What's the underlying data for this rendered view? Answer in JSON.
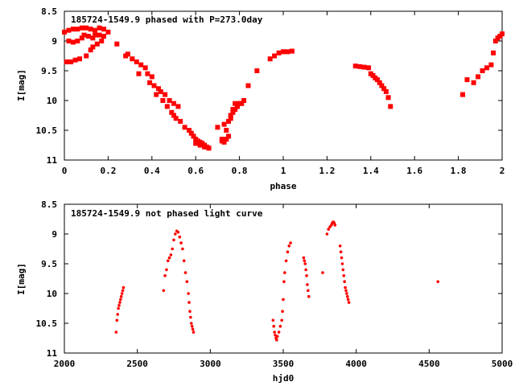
{
  "chart_data": [
    {
      "type": "scatter",
      "title": "185724-1549.9 phased with P=273.0day",
      "xlabel": "phase",
      "ylabel": "I[mag]",
      "xlim": [
        0,
        2
      ],
      "ylim": [
        11,
        8.5
      ],
      "y_inverted": true,
      "grid": false,
      "xticks": [
        "0",
        "0.2",
        "0.4",
        "0.6",
        "0.8",
        "1",
        "1.2",
        "1.4",
        "1.6",
        "1.8",
        "2"
      ],
      "yticks": [
        "8.5",
        "9",
        "9.5",
        "10",
        "10.5",
        "11"
      ],
      "marker": "plus-square",
      "color": "#ff0000",
      "series": [
        {
          "x": [
            0.0,
            0.02,
            0.04,
            0.06,
            0.08,
            0.1,
            0.12,
            0.14,
            0.16,
            0.18,
            0.2,
            0.01,
            0.03,
            0.05,
            0.07,
            0.1,
            0.12,
            0.13,
            0.15,
            0.17,
            0.02,
            0.04,
            0.06,
            0.08,
            0.09,
            0.11,
            0.13,
            0.14,
            0.16,
            0.18,
            0.24,
            0.28,
            0.29,
            0.31,
            0.33,
            0.35,
            0.37,
            0.34,
            0.38,
            0.4,
            0.39,
            0.41,
            0.43,
            0.44,
            0.46,
            0.48,
            0.5,
            0.52,
            0.42,
            0.45,
            0.47,
            0.49,
            0.5,
            0.51,
            0.53,
            0.55,
            0.57,
            0.58,
            0.59,
            0.6,
            0.61,
            0.62,
            0.63,
            0.64,
            0.65,
            0.66,
            0.6,
            0.62,
            0.64,
            0.66,
            0.7,
            0.72,
            0.73,
            0.74,
            0.75,
            0.76,
            0.77,
            0.78,
            0.79,
            0.8,
            0.81,
            0.82,
            0.72,
            0.74,
            0.75,
            0.76,
            0.77,
            0.79,
            0.73,
            0.78,
            0.8,
            0.84,
            0.88,
            0.94,
            0.96,
            0.98,
            1.0,
            1.02,
            1.04,
            1.33,
            1.35,
            1.37,
            1.39,
            1.4,
            1.41,
            1.42,
            1.43,
            1.44,
            1.45,
            1.46,
            1.47,
            1.48,
            1.49,
            1.82,
            1.84,
            1.87,
            1.89,
            1.91,
            1.93,
            1.95,
            1.96,
            1.97,
            1.98,
            1.99,
            2.0
          ],
          "y": [
            8.85,
            8.82,
            8.8,
            8.8,
            8.78,
            8.78,
            8.8,
            8.82,
            8.78,
            8.8,
            8.85,
            9.35,
            9.35,
            9.32,
            9.3,
            9.25,
            9.15,
            9.1,
            9.05,
            9.0,
            9.0,
            9.02,
            9.0,
            8.95,
            8.9,
            8.92,
            8.95,
            8.9,
            8.9,
            8.92,
            9.05,
            9.25,
            9.22,
            9.3,
            9.35,
            9.4,
            9.45,
            9.55,
            9.55,
            9.6,
            9.7,
            9.75,
            9.8,
            9.85,
            9.9,
            10.0,
            10.05,
            10.1,
            9.9,
            10.0,
            10.1,
            10.2,
            10.25,
            10.3,
            10.35,
            10.45,
            10.5,
            10.55,
            10.6,
            10.65,
            10.68,
            10.7,
            10.72,
            10.75,
            10.78,
            10.8,
            10.72,
            10.75,
            10.78,
            10.8,
            10.45,
            10.65,
            10.7,
            10.5,
            10.35,
            10.25,
            10.2,
            10.15,
            10.1,
            10.05,
            10.05,
            10.0,
            10.68,
            10.65,
            10.6,
            10.3,
            10.15,
            10.1,
            10.4,
            10.05,
            10.05,
            9.75,
            9.5,
            9.3,
            9.25,
            9.2,
            9.18,
            9.18,
            9.17,
            9.42,
            9.43,
            9.44,
            9.45,
            9.55,
            9.58,
            9.62,
            9.65,
            9.7,
            9.75,
            9.8,
            9.85,
            9.95,
            10.1,
            9.9,
            9.65,
            9.7,
            9.6,
            9.5,
            9.45,
            9.4,
            9.2,
            9.0,
            8.95,
            8.92,
            8.88
          ]
        }
      ]
    },
    {
      "type": "scatter",
      "title": "185724-1549.9 not phased light curve",
      "xlabel": "hjd0",
      "ylabel": "I[mag]",
      "xlim": [
        2000,
        5000
      ],
      "ylim": [
        11,
        8.5
      ],
      "y_inverted": true,
      "grid": false,
      "xticks": [
        "2000",
        "2500",
        "3000",
        "3500",
        "4000",
        "4500",
        "5000"
      ],
      "yticks": [
        "8.5",
        "9",
        "9.5",
        "10",
        "10.5",
        "11"
      ],
      "marker": "dot",
      "color": "#ff0000",
      "series": [
        {
          "x": [
            2355,
            2360,
            2365,
            2370,
            2375,
            2380,
            2385,
            2390,
            2395,
            2400,
            2405,
            2680,
            2690,
            2700,
            2710,
            2720,
            2730,
            2740,
            2750,
            2760,
            2770,
            2780,
            2790,
            2800,
            2810,
            2820,
            2830,
            2840,
            2850,
            2855,
            2860,
            2865,
            2870,
            2875,
            2880,
            2885,
            3430,
            3435,
            3440,
            3445,
            3450,
            3455,
            3460,
            3470,
            3480,
            3490,
            3495,
            3500,
            3505,
            3510,
            3520,
            3530,
            3540,
            3550,
            3640,
            3645,
            3650,
            3655,
            3660,
            3665,
            3670,
            3675,
            3770,
            3800,
            3810,
            3820,
            3830,
            3835,
            3840,
            3845,
            3850,
            3855,
            3890,
            3895,
            3900,
            3905,
            3910,
            3915,
            3920,
            3925,
            3930,
            3935,
            3940,
            3945,
            3950,
            4560
          ],
          "y": [
            10.65,
            10.45,
            10.35,
            10.25,
            10.2,
            10.15,
            10.1,
            10.05,
            10.0,
            9.95,
            9.9,
            9.95,
            9.7,
            9.6,
            9.45,
            9.4,
            9.35,
            9.25,
            9.1,
            9.0,
            8.95,
            8.97,
            9.05,
            9.15,
            9.25,
            9.45,
            9.65,
            9.8,
            10.0,
            10.15,
            10.3,
            10.4,
            10.5,
            10.55,
            10.6,
            10.65,
            10.45,
            10.55,
            10.65,
            10.7,
            10.75,
            10.78,
            10.72,
            10.65,
            10.55,
            10.45,
            10.3,
            10.1,
            9.8,
            9.65,
            9.45,
            9.3,
            9.2,
            9.15,
            9.4,
            9.45,
            9.5,
            9.6,
            9.7,
            9.85,
            9.95,
            10.05,
            9.65,
            9.0,
            8.92,
            8.88,
            8.85,
            8.82,
            8.8,
            8.8,
            8.82,
            8.85,
            9.2,
            9.3,
            9.4,
            9.5,
            9.6,
            9.7,
            9.8,
            9.9,
            9.95,
            10.0,
            10.05,
            10.1,
            10.15,
            9.8
          ]
        }
      ]
    }
  ]
}
